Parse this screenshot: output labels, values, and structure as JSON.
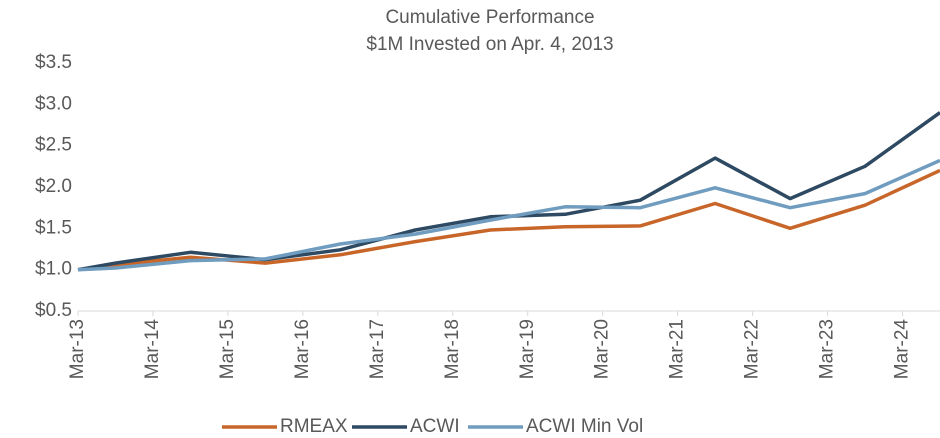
{
  "chart_data": {
    "type": "line",
    "title": "Cumulative Performance",
    "subtitle": "$1M Invested on Apr. 4, 2013",
    "x": [
      0,
      0.5,
      1.5,
      2.5,
      3.5,
      4.5,
      5.5,
      6.5,
      7.5,
      8.5,
      9.5,
      10.5,
      11.5
    ],
    "xlim": [
      0,
      11.5
    ],
    "xticks": [
      {
        "value": 0,
        "label": "Mar-13"
      },
      {
        "value": 1,
        "label": "Mar-14"
      },
      {
        "value": 2,
        "label": "Mar-15"
      },
      {
        "value": 3,
        "label": "Mar-16"
      },
      {
        "value": 4,
        "label": "Mar-17"
      },
      {
        "value": 5,
        "label": "Mar-18"
      },
      {
        "value": 6,
        "label": "Mar-19"
      },
      {
        "value": 7,
        "label": "Mar-20"
      },
      {
        "value": 8,
        "label": "Mar-21"
      },
      {
        "value": 9,
        "label": "Mar-22"
      },
      {
        "value": 10,
        "label": "Mar-23"
      },
      {
        "value": 11,
        "label": "Mar-24"
      }
    ],
    "ylim": [
      0.5,
      3.5
    ],
    "yticks": [
      {
        "value": 0.5,
        "label": "$0.5"
      },
      {
        "value": 1.0,
        "label": "$1.0"
      },
      {
        "value": 1.5,
        "label": "$1.5"
      },
      {
        "value": 2.0,
        "label": "$2.0"
      },
      {
        "value": 2.5,
        "label": "$2.5"
      },
      {
        "value": 3.0,
        "label": "$3.0"
      },
      {
        "value": 3.5,
        "label": "$3.5"
      }
    ],
    "series": [
      {
        "name": "RMEAX",
        "color": "#c8662a",
        "values": [
          1.0,
          1.06,
          1.15,
          1.08,
          1.18,
          1.34,
          1.48,
          1.52,
          1.53,
          1.8,
          1.5,
          1.78,
          2.2
        ]
      },
      {
        "name": "ACWI",
        "color": "#2e4a62",
        "values": [
          1.0,
          1.08,
          1.21,
          1.12,
          1.24,
          1.48,
          1.64,
          1.67,
          1.84,
          2.35,
          1.86,
          2.25,
          2.9
        ]
      },
      {
        "name": "ACWI Min Vol",
        "color": "#6f9cbf",
        "values": [
          1.0,
          1.02,
          1.11,
          1.13,
          1.31,
          1.43,
          1.6,
          1.76,
          1.75,
          1.99,
          1.75,
          1.92,
          2.32
        ]
      }
    ]
  }
}
